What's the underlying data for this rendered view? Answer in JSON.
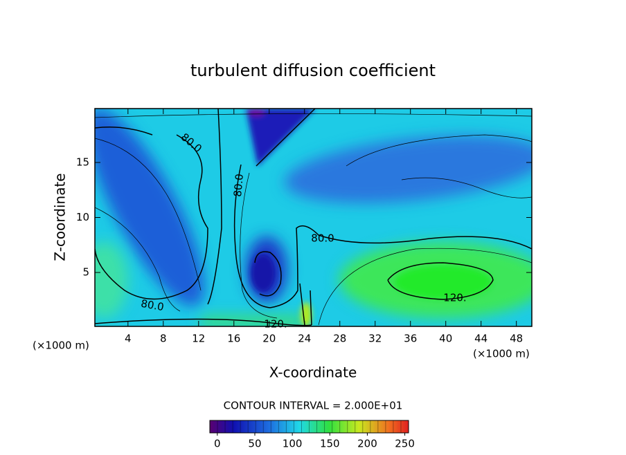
{
  "chart_data": {
    "type": "contour",
    "title": "turbulent diffusion coefficient",
    "x_label": "X-coordinate",
    "y_label": "Z-coordinate",
    "x_unit": "(×1000 m)",
    "x_unit_right": "(×1000 m)",
    "xlim": [
      0.25,
      49.75
    ],
    "ylim": [
      0.1,
      19.9
    ],
    "xticks": [
      4,
      8,
      12,
      16,
      20,
      24,
      28,
      32,
      36,
      40,
      44,
      48
    ],
    "yticks": [
      5,
      10,
      15
    ],
    "contour_labels": [
      "80.0",
      "80.0",
      "80.0",
      "80.0",
      "120.",
      "120."
    ],
    "contour_interval": "CONTOUR INTERVAL = 2.000E+01",
    "colorbar_lim": [
      -10,
      255
    ],
    "colorbar_ticks": [
      0,
      50,
      100,
      150,
      200,
      250
    ]
  }
}
